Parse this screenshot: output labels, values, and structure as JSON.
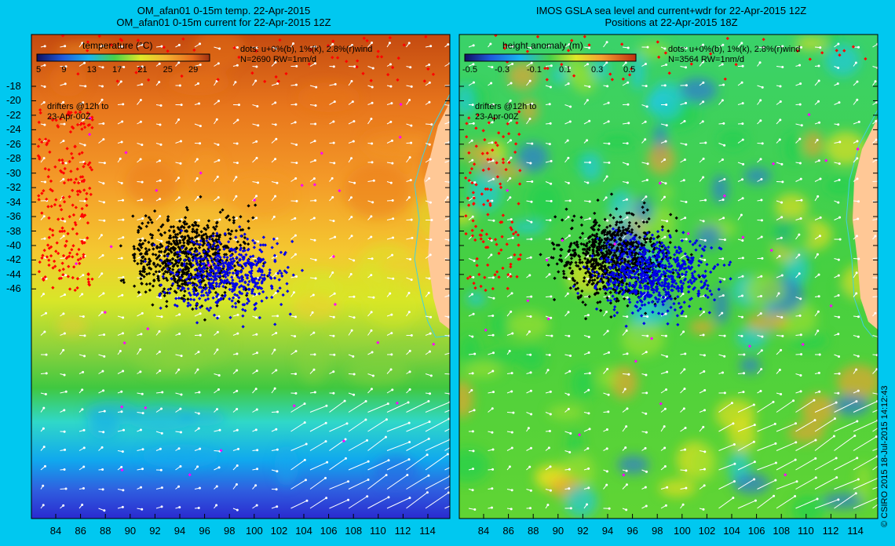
{
  "left_panel": {
    "title_line1": "OM_afan01 0-15m temp. 22-Apr-2015",
    "title_line2": "OM_afan01 0-15m current for 22-Apr-2015 12Z",
    "colorbar_label": "temperature (°C)",
    "colorbar_ticks": [
      "5",
      "9",
      "13",
      "17",
      "21",
      "25",
      "29"
    ],
    "dots_text": "dots: u+0%(b), 1%(k), 2.8%(r)wind",
    "count_text": "N=2690 RW=1nm/d",
    "drifters_line1": "drifters @12h to",
    "drifters_line2": "23-Apr-00Z"
  },
  "right_panel": {
    "title_line1": "IMOS GSLA sea level and current+wdr for 22-Apr-2015 12Z",
    "title_line2": "Positions at 22-Apr-2015 18Z",
    "colorbar_label": "height anomaly (m)",
    "colorbar_ticks": [
      "-0.5",
      "-0.3",
      "-0.1",
      "0.1",
      "0.3",
      "0.5"
    ],
    "dots_text": "dots: u+0%(b), 1%(k), 2.8%(r)wind",
    "count_text": "N=3564 RW=1nm/d",
    "drifters_line1": "drifters @12h to",
    "drifters_line2": "23-Apr-00Z"
  },
  "lat_labels": [
    "-18",
    "-20",
    "-22",
    "-24",
    "-26",
    "-28",
    "-30",
    "-32",
    "-34",
    "-36",
    "-38",
    "-40",
    "-42",
    "-44",
    "-46"
  ],
  "lon_labels": [
    "84",
    "86",
    "88",
    "90",
    "92",
    "94",
    "96",
    "98",
    "100",
    "102",
    "104",
    "106",
    "108",
    "110",
    "112",
    "114"
  ],
  "credit": "© CSIRO 2015   18-Jul-2015 14:12:43",
  "colors": {
    "background": "#00c8f0",
    "land": "#ffc896",
    "dot_blue": "#0000e6",
    "dot_black": "#000000",
    "dot_red": "#ff0000",
    "dot_magenta": "#ff00ff"
  }
}
